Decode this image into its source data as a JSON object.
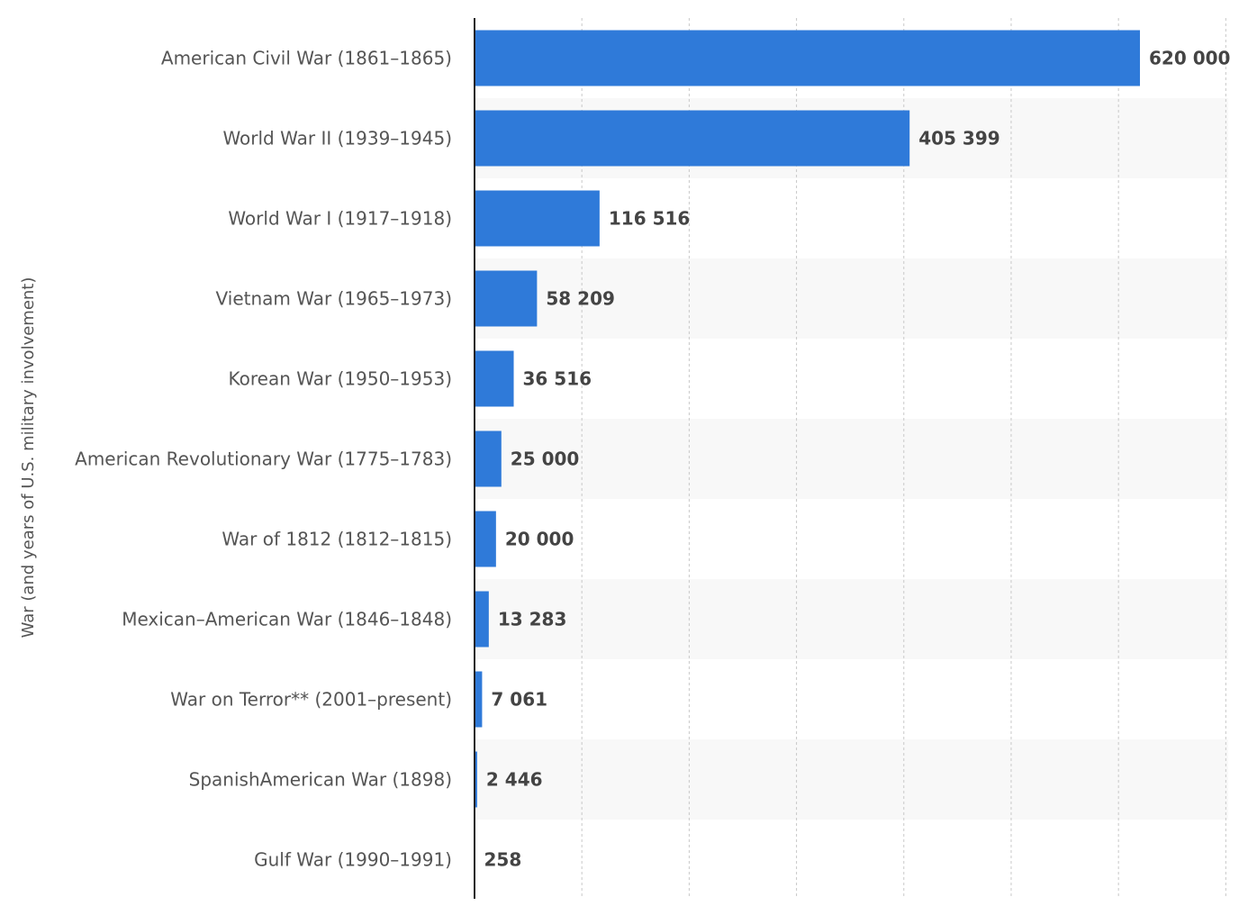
{
  "chart_data": {
    "type": "bar",
    "orientation": "horizontal",
    "ylabel": "War (and years of U.S. military involvement)",
    "xlabel": "",
    "xlim": [
      0,
      700000
    ],
    "grid": true,
    "legend": "none",
    "bar_color": "#2f7ad9",
    "categories": [
      "American Civil War (1861–1865)",
      "World War II (1939–1945)",
      "World War I (1917–1918)",
      "Vietnam War (1965–1973)",
      "Korean War (1950–1953)",
      "American Revolutionary War (1775–1783)",
      "War of 1812 (1812–1815)",
      "Mexican–American War (1846–1848)",
      "War on Terror** (2001–present)",
      "SpanishAmerican War (1898)",
      "Gulf War (1990–1991)"
    ],
    "values": [
      620000,
      405399,
      116516,
      58209,
      36516,
      25000,
      20000,
      13283,
      7061,
      2446,
      258
    ],
    "value_labels": [
      "620 000",
      "405 399",
      "116 516",
      "58 209",
      "36 516",
      "25 000",
      "20 000",
      "13 283",
      "7 061",
      "2 446",
      "258"
    ]
  }
}
